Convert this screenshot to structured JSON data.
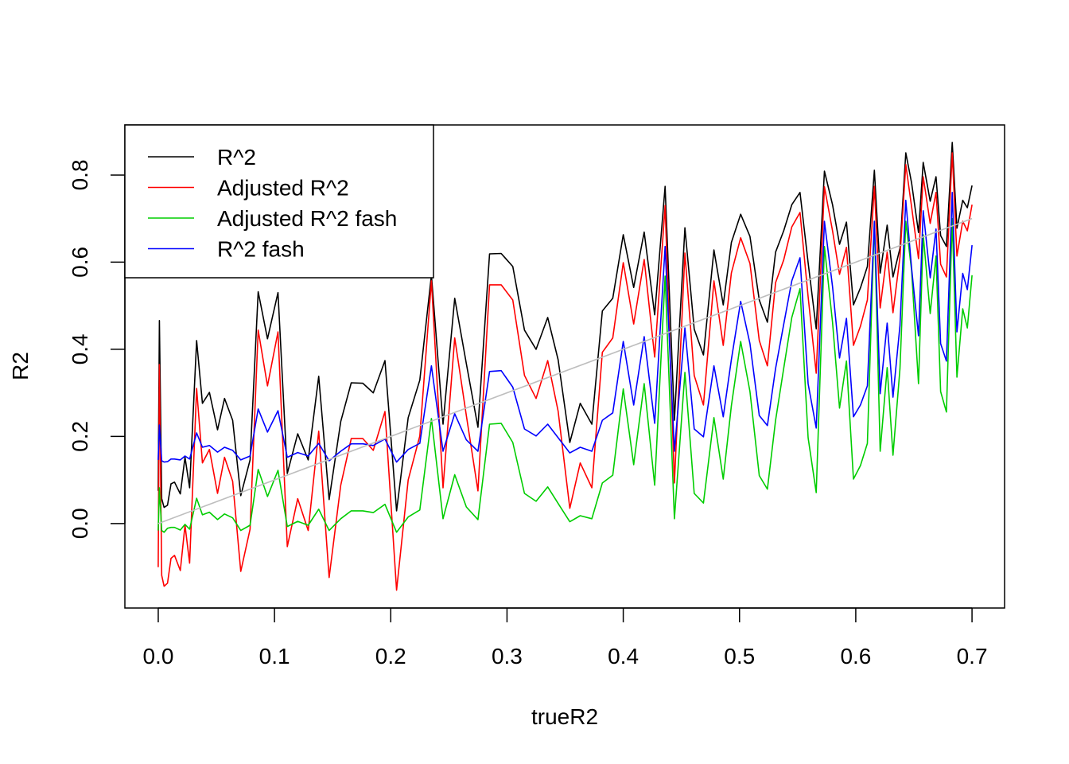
{
  "chart_data": {
    "type": "line",
    "title": "",
    "xlabel": "trueR2",
    "ylabel": "R2",
    "xlim": [
      -0.0287,
      0.728
    ],
    "ylim": [
      -0.194,
      0.915
    ],
    "xticks": [
      0.0,
      0.1,
      0.2,
      0.3,
      0.4,
      0.5,
      0.6,
      0.7
    ],
    "xtick_labels": [
      "0.0",
      "0.1",
      "0.2",
      "0.3",
      "0.4",
      "0.5",
      "0.6",
      "0.7"
    ],
    "yticks": [
      0.0,
      0.2,
      0.4,
      0.6,
      0.8
    ],
    "ytick_labels": [
      "0.0",
      "0.2",
      "0.4",
      "0.6",
      "0.8"
    ],
    "grid": false,
    "legend_position": "top-left",
    "x": [
      0,
      0.001,
      0.003,
      0.005,
      0.008,
      0.011,
      0.014,
      0.019,
      0.023,
      0.027,
      0.033,
      0.038,
      0.044,
      0.051,
      0.057,
      0.064,
      0.071,
      0.079,
      0.086,
      0.094,
      0.103,
      0.111,
      0.12,
      0.129,
      0.138,
      0.147,
      0.157,
      0.166,
      0.176,
      0.185,
      0.195,
      0.205,
      0.215,
      0.225,
      0.235,
      0.245,
      0.255,
      0.265,
      0.275,
      0.285,
      0.295,
      0.305,
      0.315,
      0.325,
      0.335,
      0.344,
      0.354,
      0.363,
      0.373,
      0.382,
      0.391,
      0.4,
      0.409,
      0.418,
      0.427,
      0.436,
      0.444,
      0.453,
      0.461,
      0.469,
      0.478,
      0.486,
      0.493,
      0.501,
      0.509,
      0.517,
      0.524,
      0.531,
      0.538,
      0.545,
      0.552,
      0.559,
      0.566,
      0.573,
      0.58,
      0.586,
      0.592,
      0.598,
      0.604,
      0.61,
      0.616,
      0.621,
      0.627,
      0.632,
      0.638,
      0.643,
      0.648,
      0.654,
      0.658,
      0.664,
      0.669,
      0.673,
      0.678,
      0.683,
      0.687,
      0.692,
      0.696,
      0.7
    ],
    "series": [
      {
        "name": "R^2",
        "color": "#000000",
        "values": [
          0.075,
          0.466,
          0.057,
          0.037,
          0.042,
          0.091,
          0.095,
          0.068,
          0.152,
          0.082,
          0.42,
          0.276,
          0.301,
          0.215,
          0.287,
          0.237,
          0.064,
          0.146,
          0.532,
          0.424,
          0.53,
          0.115,
          0.206,
          0.146,
          0.338,
          0.055,
          0.234,
          0.323,
          0.322,
          0.3,
          0.374,
          0.029,
          0.243,
          0.329,
          0.57,
          0.228,
          0.517,
          0.367,
          0.221,
          0.619,
          0.62,
          0.59,
          0.444,
          0.4,
          0.473,
          0.376,
          0.186,
          0.276,
          0.228,
          0.488,
          0.517,
          0.663,
          0.542,
          0.669,
          0.479,
          0.774,
          0.237,
          0.679,
          0.446,
          0.387,
          0.628,
          0.502,
          0.645,
          0.71,
          0.659,
          0.513,
          0.462,
          0.623,
          0.672,
          0.732,
          0.76,
          0.599,
          0.447,
          0.809,
          0.732,
          0.641,
          0.692,
          0.502,
          0.541,
          0.59,
          0.811,
          0.575,
          0.685,
          0.566,
          0.632,
          0.851,
          0.782,
          0.668,
          0.829,
          0.74,
          0.796,
          0.661,
          0.636,
          0.875,
          0.678,
          0.742,
          0.725,
          0.776
        ]
      },
      {
        "name": "Adjusted R^2",
        "color": "#ff0000",
        "values": [
          -0.1,
          0.365,
          -0.119,
          -0.144,
          -0.137,
          -0.08,
          -0.073,
          -0.108,
          -0.004,
          -0.091,
          0.31,
          0.139,
          0.17,
          0.069,
          0.152,
          0.097,
          -0.11,
          -0.013,
          0.444,
          0.316,
          0.44,
          -0.053,
          0.057,
          -0.016,
          0.212,
          -0.124,
          0.088,
          0.195,
          0.195,
          0.168,
          0.257,
          -0.153,
          0.1,
          0.201,
          0.557,
          0.082,
          0.426,
          0.248,
          0.075,
          0.548,
          0.548,
          0.513,
          0.34,
          0.287,
          0.374,
          0.258,
          0.035,
          0.139,
          0.082,
          0.393,
          0.426,
          0.599,
          0.458,
          0.606,
          0.382,
          0.73,
          0.093,
          0.621,
          0.34,
          0.272,
          0.557,
          0.409,
          0.575,
          0.656,
          0.597,
          0.42,
          0.362,
          0.553,
          0.605,
          0.681,
          0.714,
          0.521,
          0.345,
          0.773,
          0.672,
          0.572,
          0.634,
          0.409,
          0.453,
          0.513,
          0.774,
          0.495,
          0.623,
          0.484,
          0.612,
          0.824,
          0.727,
          0.608,
          0.796,
          0.689,
          0.76,
          0.595,
          0.566,
          0.851,
          0.614,
          0.694,
          0.672,
          0.732
        ]
      },
      {
        "name": "Adjusted R^2 fash",
        "color": "#00cd00",
        "values": [
          -0.016,
          0.082,
          -0.016,
          -0.02,
          -0.011,
          -0.009,
          -0.009,
          -0.015,
          -0.002,
          -0.013,
          0.058,
          0.02,
          0.026,
          0.009,
          0.022,
          0.013,
          -0.016,
          -0.004,
          0.124,
          0.062,
          0.122,
          -0.007,
          0.005,
          -0.004,
          0.033,
          -0.016,
          0.011,
          0.029,
          0.029,
          0.025,
          0.044,
          -0.02,
          0.015,
          0.031,
          0.241,
          0.011,
          0.112,
          0.038,
          0.009,
          0.228,
          0.23,
          0.186,
          0.069,
          0.051,
          0.084,
          0.046,
          0.004,
          0.018,
          0.011,
          0.093,
          0.111,
          0.309,
          0.135,
          0.321,
          0.088,
          0.568,
          0.011,
          0.347,
          0.069,
          0.047,
          0.243,
          0.102,
          0.27,
          0.418,
          0.303,
          0.11,
          0.079,
          0.237,
          0.356,
          0.473,
          0.539,
          0.197,
          0.071,
          0.636,
          0.462,
          0.265,
          0.373,
          0.102,
          0.133,
          0.184,
          0.694,
          0.166,
          0.358,
          0.157,
          0.356,
          0.694,
          0.581,
          0.321,
          0.663,
          0.482,
          0.614,
          0.303,
          0.256,
          0.7,
          0.336,
          0.493,
          0.449,
          0.57
        ]
      },
      {
        "name": "R^2 fash",
        "color": "#0000ff",
        "values": [
          0.146,
          0.226,
          0.144,
          0.141,
          0.142,
          0.148,
          0.148,
          0.146,
          0.155,
          0.148,
          0.208,
          0.175,
          0.179,
          0.164,
          0.175,
          0.168,
          0.146,
          0.155,
          0.263,
          0.21,
          0.259,
          0.152,
          0.163,
          0.155,
          0.184,
          0.144,
          0.166,
          0.183,
          0.183,
          0.179,
          0.194,
          0.141,
          0.17,
          0.184,
          0.362,
          0.166,
          0.252,
          0.192,
          0.166,
          0.349,
          0.351,
          0.313,
          0.217,
          0.201,
          0.228,
          0.197,
          0.162,
          0.175,
          0.166,
          0.237,
          0.254,
          0.418,
          0.272,
          0.429,
          0.23,
          0.636,
          0.166,
          0.449,
          0.217,
          0.199,
          0.362,
          0.245,
          0.376,
          0.51,
          0.413,
          0.248,
          0.225,
          0.356,
          0.457,
          0.557,
          0.61,
          0.321,
          0.219,
          0.694,
          0.544,
          0.38,
          0.471,
          0.245,
          0.272,
          0.316,
          0.694,
          0.298,
          0.46,
          0.29,
          0.455,
          0.742,
          0.586,
          0.431,
          0.718,
          0.564,
          0.676,
          0.413,
          0.373,
          0.76,
          0.44,
          0.574,
          0.537,
          0.639
        ]
      }
    ],
    "reference_line": {
      "from": [
        0,
        0
      ],
      "to": [
        0.7,
        0.7
      ],
      "color": "#bebebe"
    }
  }
}
